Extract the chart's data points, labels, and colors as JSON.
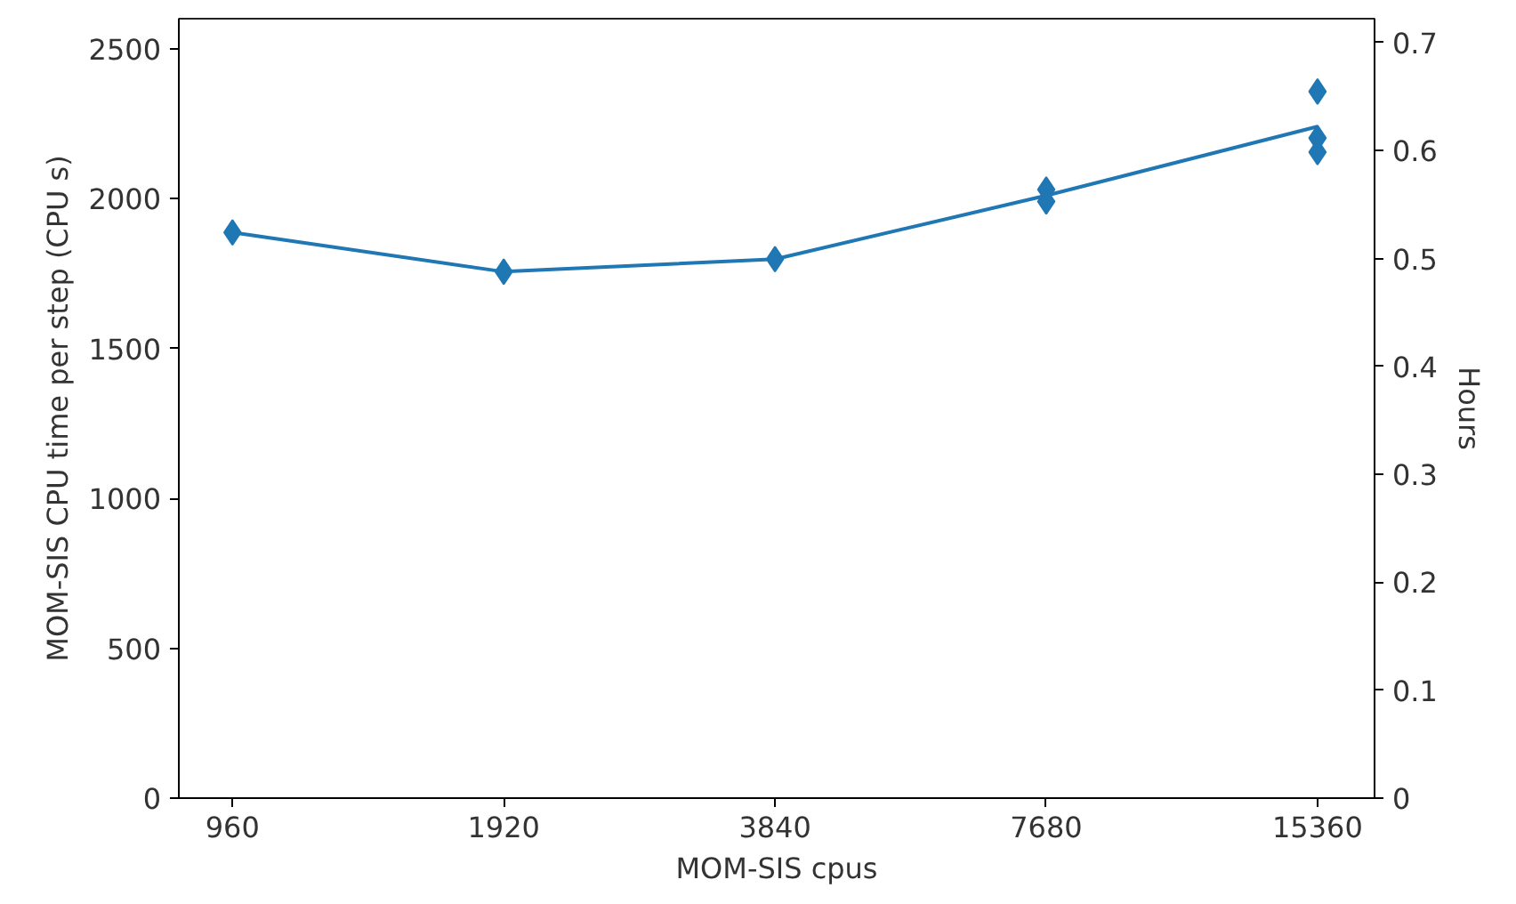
{
  "chart_data": {
    "type": "line",
    "xlabel": "MOM-SIS cpus",
    "ylabel": "MOM-SIS CPU time per step (CPU s)",
    "y2label": "Hours",
    "log": "x",
    "xlim": [
      837,
      17770
    ],
    "xticks": [
      960,
      1920,
      3840,
      7680,
      15360
    ],
    "ylim": [
      0,
      2600
    ],
    "yticks": [
      0,
      500,
      1000,
      1500,
      2000,
      2500
    ],
    "y2lim": [
      0,
      0.7222
    ],
    "y2ticks": [
      0,
      0.1,
      0.2,
      0.3,
      0.4,
      0.5,
      0.6,
      0.7
    ],
    "grid": false,
    "series": [
      {
        "color": "#1f77b4",
        "marker": "none",
        "line_style": "solid",
        "x": [
          960,
          1920,
          3840,
          7680,
          15360
        ],
        "values": [
          1887,
          1756,
          1798,
          2010,
          2240
        ]
      },
      {
        "type": "scatter",
        "color": "#1f77b4",
        "marker": "diamond",
        "x": [
          960,
          1920,
          3840,
          7680,
          7680,
          15360,
          15360,
          15360
        ],
        "values": [
          1887,
          1756,
          1798,
          2030,
          1990,
          2357,
          2202,
          2155
        ]
      }
    ]
  }
}
